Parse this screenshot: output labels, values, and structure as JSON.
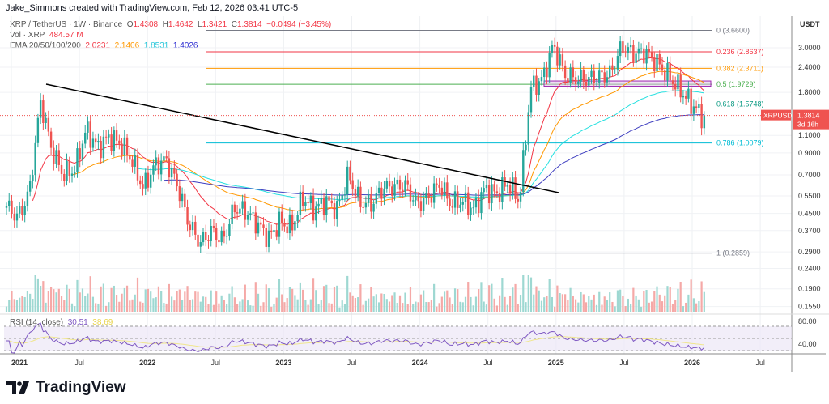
{
  "credit": "Jake_Simmons created with TradingView.com, Feb 12, 2026 03:41 UTC-5",
  "legend": {
    "symbol": "XRP / TetherUS · 1W · Binance",
    "o_label": "O",
    "o": "1.4308",
    "h_label": "H",
    "h": "1.4642",
    "l_label": "L",
    "l": "1.3421",
    "c_label": "C",
    "c": "1.3814",
    "change": "−0.0494 (−3.45%)",
    "vol_label": "Vol · XRP",
    "vol": "484.57 M",
    "ema_label": "EMA 20/50/100/200",
    "ema20": "2.0231",
    "ema50": "2.1406",
    "ema100": "1.8531",
    "ema200": "1.4026",
    "rsi_label": "RSI (14, close)",
    "rsi": "30.51",
    "rsi_ma": "38.69"
  },
  "colors": {
    "up": "#26a69a",
    "down": "#ef5350",
    "ema20": "#f23645",
    "ema50": "#ff9800",
    "ema100": "#26e0e0",
    "ema200": "#3f3fc0",
    "rsi": "#7e57c2",
    "rsi_ma": "#f0e68c",
    "trendline": "#000000"
  },
  "chart_data": {
    "type": "candlestick",
    "interval": "1W",
    "scale": "log",
    "currency": "USDT",
    "ylim": [
      0.15,
      3.9
    ],
    "y_ticks": [
      "3.0000",
      "2.4000",
      "1.8000",
      "1.1000",
      "0.9000",
      "0.7000",
      "0.5500",
      "0.4500",
      "0.3700",
      "0.2900",
      "0.2400",
      "0.1900",
      "0.1550"
    ],
    "x_ticks": [
      "2021",
      "Jul",
      "2022",
      "Jul",
      "2023",
      "Jul",
      "2024",
      "Jul",
      "2025",
      "Jul",
      "2026",
      "Jul"
    ],
    "last_price": {
      "label": "XRPUSDT",
      "value": "1.3814",
      "countdown": "3d 16h"
    },
    "monthly_close_approx": {
      "start": "2021-01",
      "values": [
        0.49,
        0.43,
        0.57,
        1.62,
        0.92,
        0.7,
        0.75,
        1.18,
        0.95,
        1.08,
        1.0,
        0.83,
        0.6,
        0.78,
        0.83,
        0.62,
        0.4,
        0.32,
        0.37,
        0.33,
        0.48,
        0.46,
        0.4,
        0.34,
        0.41,
        0.38,
        0.54,
        0.47,
        0.52,
        0.47,
        0.7,
        0.51,
        0.5,
        0.6,
        0.61,
        0.62,
        0.5,
        0.54,
        0.63,
        0.5,
        0.52,
        0.47,
        0.6,
        0.56,
        0.64,
        0.52,
        1.9,
        2.08,
        3.1,
        2.2,
        2.1,
        2.09,
        2.15,
        2.23,
        3.05,
        2.8,
        2.85,
        2.55,
        2.2,
        1.88,
        1.6,
        1.38
      ]
    },
    "fib_levels": [
      {
        "label": "0 (3.6600)",
        "value": 3.66,
        "color": "#787b86"
      },
      {
        "label": "0.236 (2.8637)",
        "value": 2.8637,
        "color": "#f23645"
      },
      {
        "label": "0.382 (2.3711)",
        "value": 2.3711,
        "color": "#ff9800"
      },
      {
        "label": "0.5 (1.9729)",
        "value": 1.9729,
        "color": "#4caf50"
      },
      {
        "label": "0.618 (1.5748)",
        "value": 1.5748,
        "color": "#089981"
      },
      {
        "label": "0.786 (1.0079)",
        "value": 1.0079,
        "color": "#00bcd4"
      },
      {
        "label": "1 (0.2859)",
        "value": 0.2859,
        "color": "#787b86"
      }
    ],
    "trendline": {
      "from": [
        "2021-04",
        1.96
      ],
      "to": [
        "2024-12",
        0.57
      ]
    },
    "rsi_ticks": [
      "80.00",
      "40.00"
    ]
  },
  "branding": "TradingView"
}
